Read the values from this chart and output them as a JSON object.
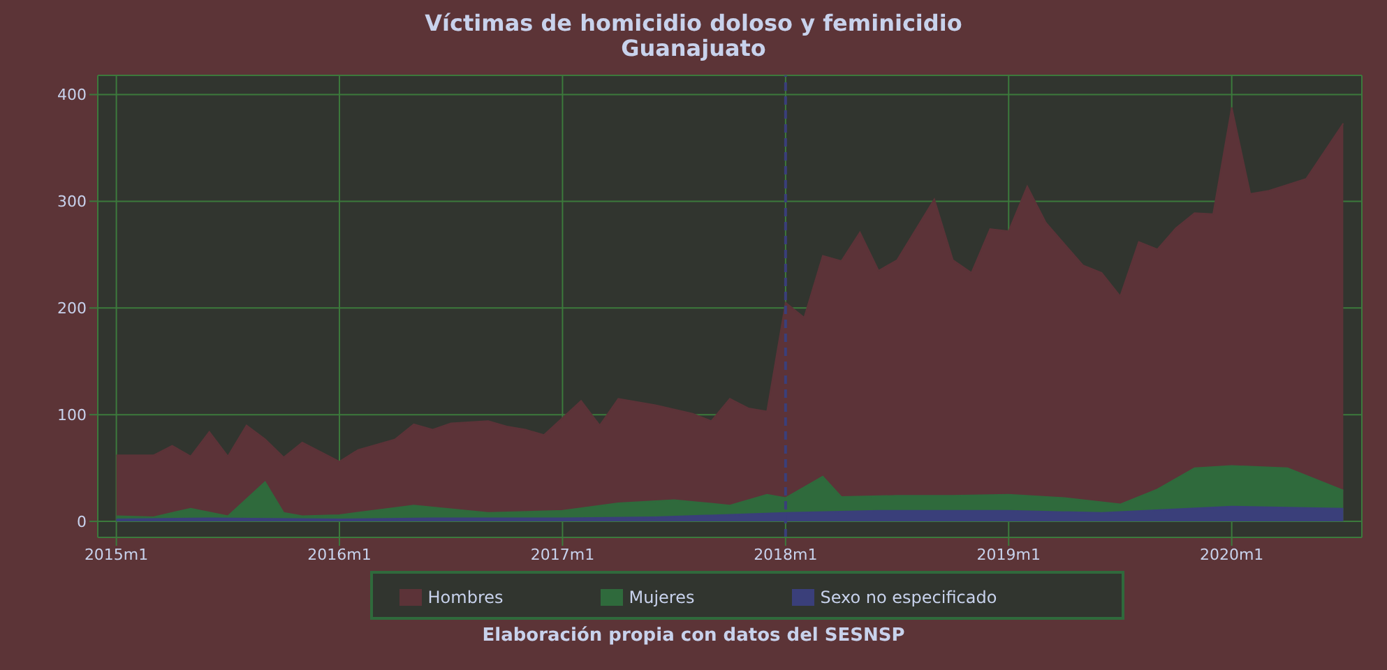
{
  "chart_data": {
    "type": "area",
    "title": "Víctimas de homicidio doloso y feminicidio",
    "subtitle": "Guanajuato",
    "annotations": [
      "Elaboración propia con datos del SESNSP"
    ],
    "xlim": [
      "2014-12",
      "2020-08"
    ],
    "xticks": [
      {
        "value": "2015-01",
        "label": "2015m1"
      },
      {
        "value": "2016-01",
        "label": "2016m1"
      },
      {
        "value": "2017-01",
        "label": "2017m1"
      },
      {
        "value": "2018-01",
        "label": "2018m1"
      },
      {
        "value": "2019-01",
        "label": "2019m1"
      },
      {
        "value": "2020-01",
        "label": "2020m1"
      }
    ],
    "ylim": [
      -15,
      418
    ],
    "yticks": [
      0,
      100,
      200,
      300,
      400
    ],
    "grid": true,
    "legend": "bottom",
    "ref_lines": [
      {
        "axis": "x",
        "value": "2018-01",
        "color": "#3a3f7a",
        "line_style": "dashed"
      }
    ],
    "series": [
      {
        "name": "Hombres",
        "color": "#5c3338",
        "x": [
          "2015-01",
          "2015-03",
          "2015-04",
          "2015-05",
          "2015-06",
          "2015-07",
          "2015-08",
          "2015-09",
          "2015-10",
          "2015-11",
          "2015-12",
          "2016-01",
          "2016-02",
          "2016-04",
          "2016-05",
          "2016-06",
          "2016-07",
          "2016-09",
          "2016-10",
          "2016-11",
          "2016-12",
          "2017-01",
          "2017-02",
          "2017-03",
          "2017-04",
          "2017-06",
          "2017-08",
          "2017-09",
          "2017-10",
          "2017-11",
          "2017-12",
          "2018-01",
          "2018-02",
          "2018-03",
          "2018-04",
          "2018-05",
          "2018-06",
          "2018-07",
          "2018-09",
          "2018-10",
          "2018-11",
          "2018-12",
          "2019-01",
          "2019-02",
          "2019-03",
          "2019-05",
          "2019-06",
          "2019-07",
          "2019-08",
          "2019-09",
          "2019-10",
          "2019-11",
          "2019-12",
          "2020-01",
          "2020-02",
          "2020-03",
          "2020-05",
          "2020-07"
        ],
        "values": [
          62,
          62,
          71,
          61,
          84,
          61,
          90,
          77,
          60,
          74,
          65,
          56,
          67,
          77,
          91,
          86,
          92,
          94,
          89,
          86,
          81,
          97,
          113,
          90,
          115,
          109,
          101,
          94,
          115,
          106,
          103,
          205,
          191,
          249,
          244,
          271,
          235,
          245,
          302,
          245,
          233,
          274,
          272,
          314,
          280,
          240,
          233,
          211,
          262,
          255,
          275,
          289,
          288,
          388,
          307,
          310,
          321,
          373
        ]
      },
      {
        "name": "Mujeres",
        "color": "#2f6a3c",
        "x": [
          "2015-01",
          "2015-03",
          "2015-05",
          "2015-07",
          "2015-09",
          "2015-10",
          "2015-11",
          "2016-01",
          "2016-05",
          "2016-09",
          "2017-01",
          "2017-04",
          "2017-07",
          "2017-10",
          "2017-12",
          "2018-01",
          "2018-03",
          "2018-04",
          "2018-07",
          "2018-10",
          "2019-01",
          "2019-04",
          "2019-07",
          "2019-09",
          "2019-11",
          "2020-01",
          "2020-04",
          "2020-07"
        ],
        "values": [
          5,
          4,
          12,
          5,
          37,
          8,
          5,
          6,
          15,
          8,
          10,
          17,
          20,
          15,
          25,
          22,
          42,
          23,
          24,
          24,
          25,
          22,
          16,
          30,
          50,
          52,
          50,
          29
        ]
      },
      {
        "name": "Sexo no especificado",
        "color": "#3a3f7a",
        "x": [
          "2015-01",
          "2015-06",
          "2016-01",
          "2016-06",
          "2017-01",
          "2017-06",
          "2018-01",
          "2018-06",
          "2019-01",
          "2019-06",
          "2020-01",
          "2020-07"
        ],
        "values": [
          2,
          3,
          2,
          3,
          3,
          4,
          8,
          10,
          10,
          8,
          14,
          12
        ]
      }
    ]
  }
}
